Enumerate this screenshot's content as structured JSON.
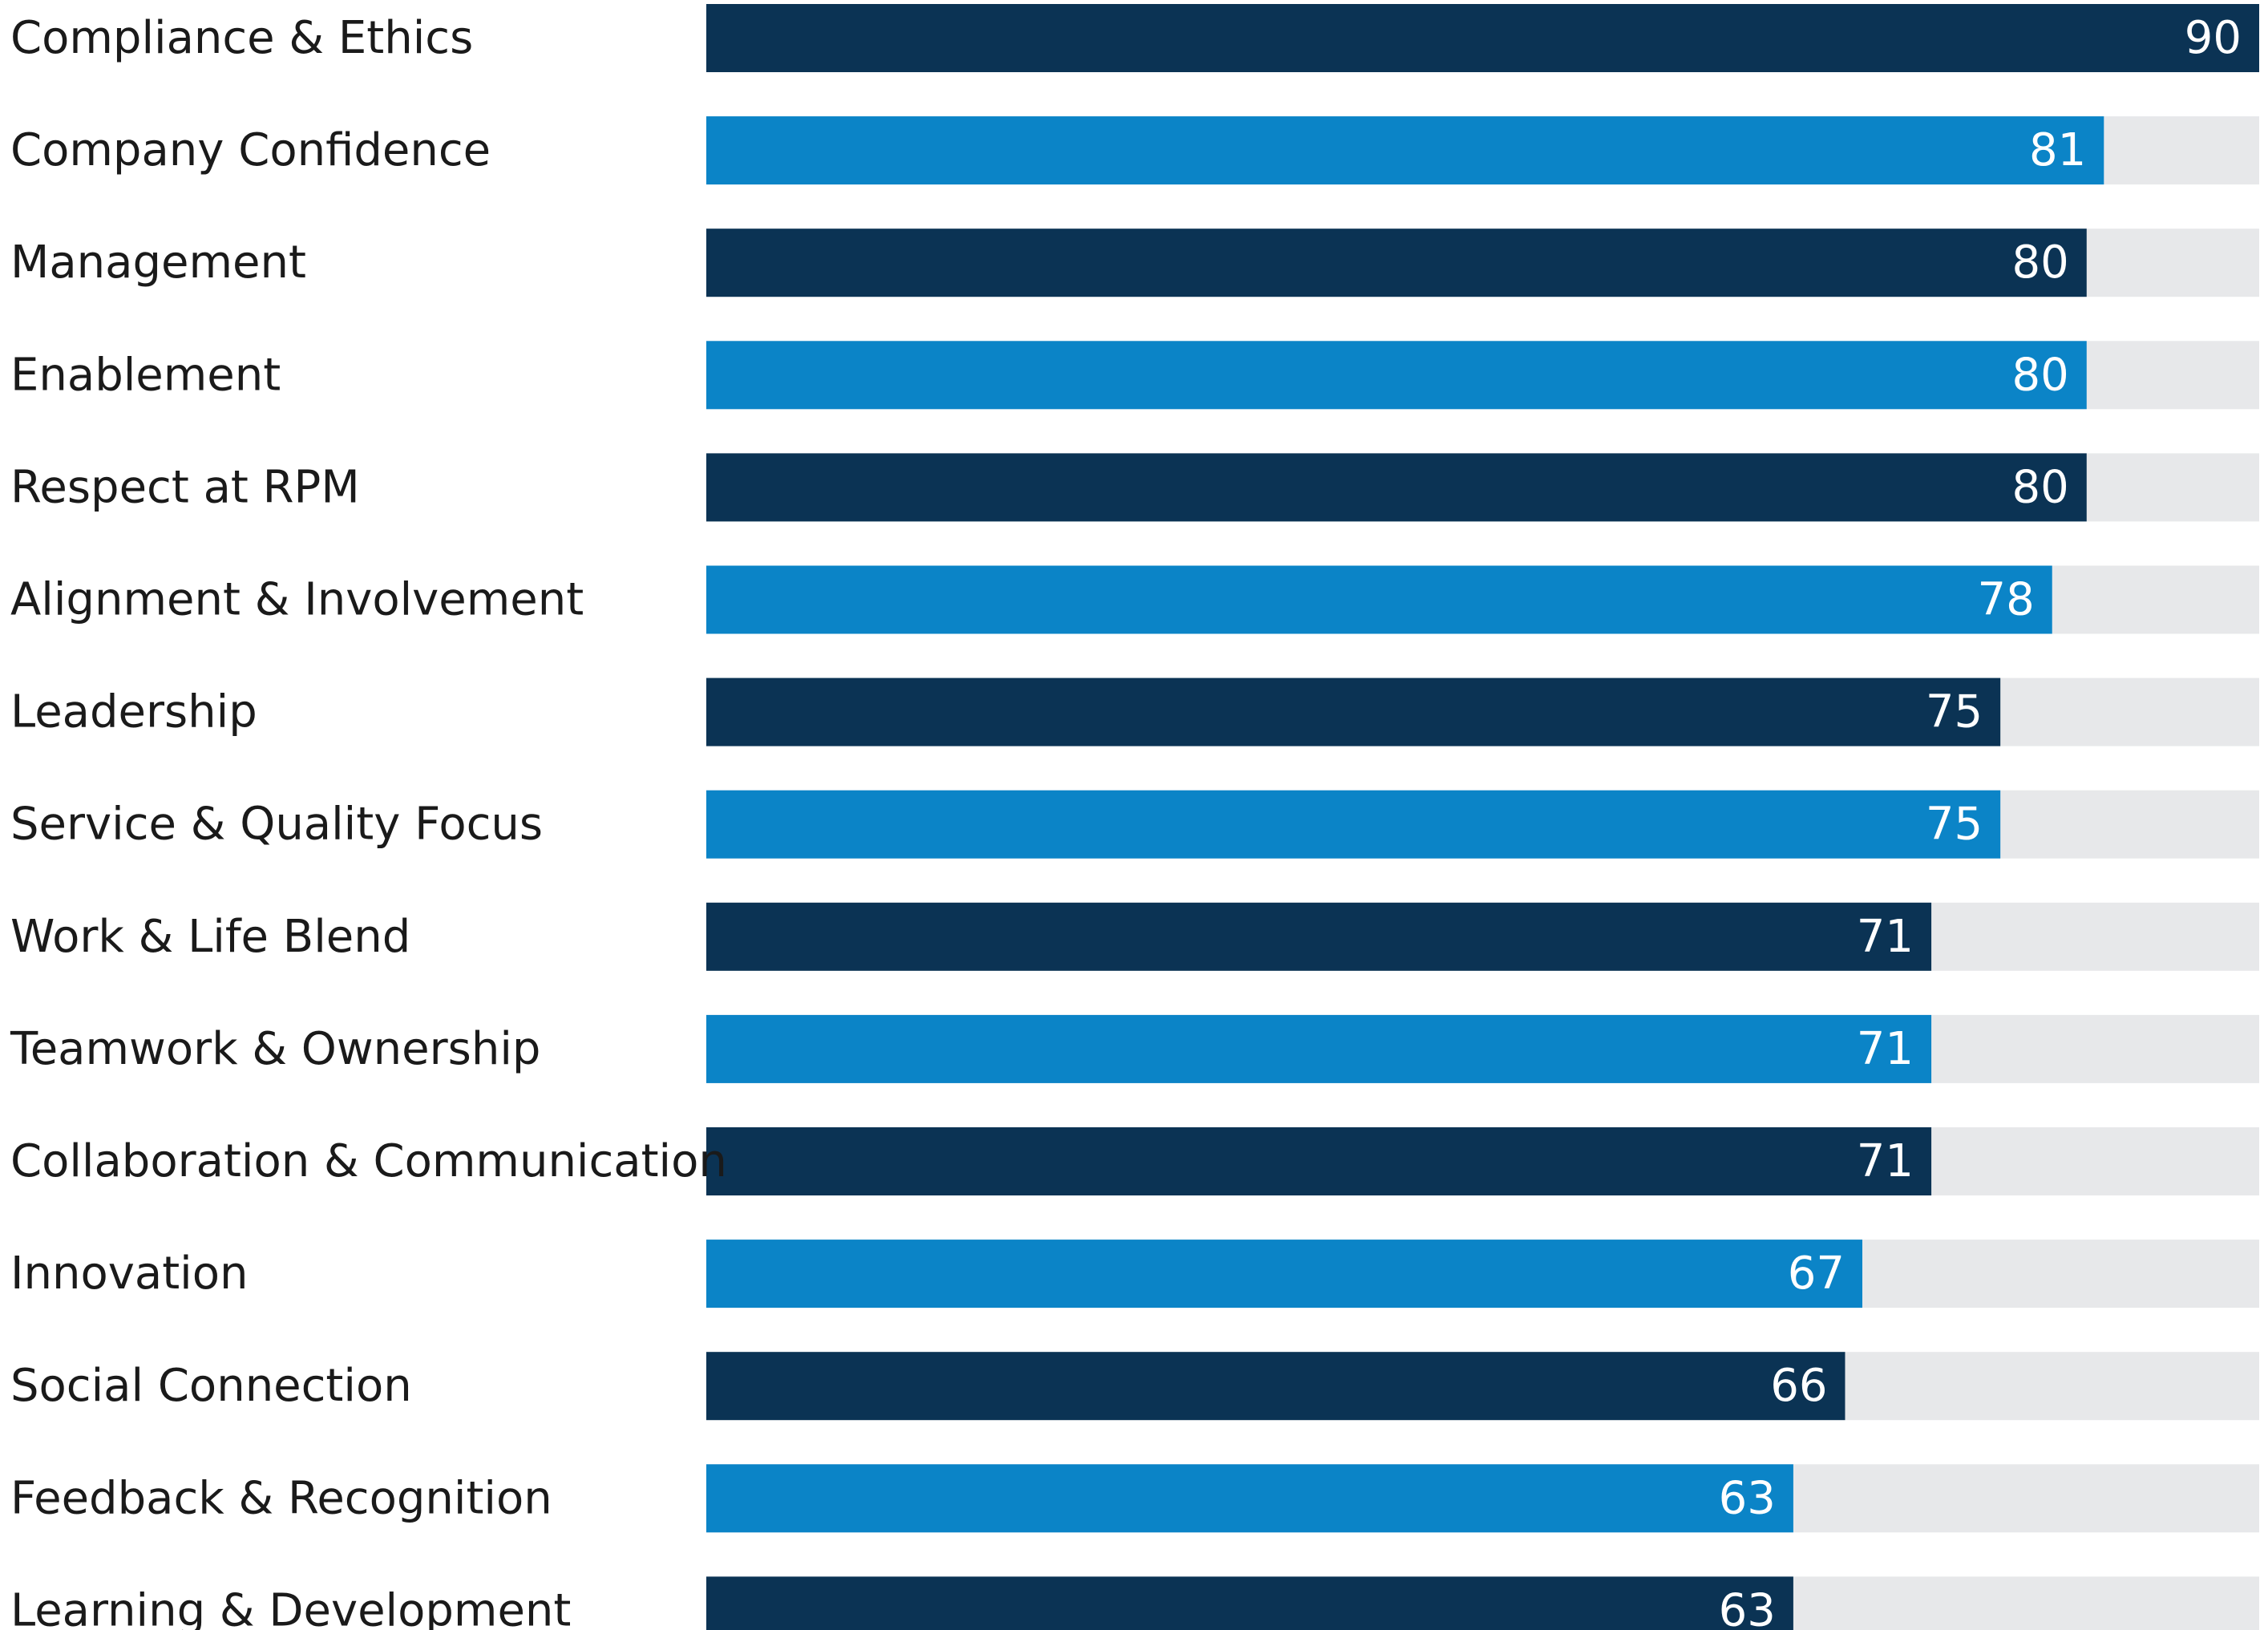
{
  "chart_data": {
    "type": "bar",
    "orientation": "horizontal",
    "title": "",
    "xlabel": "",
    "ylabel": "",
    "xlim": [
      0,
      90
    ],
    "grid": false,
    "categories": [
      "Compliance & Ethics",
      "Company Confidence",
      "Management",
      "Enablement",
      "Respect at RPM",
      "Alignment & Involvement",
      "Leadership",
      "Service & Quality Focus",
      "Work & Life Blend",
      "Teamwork & Ownership",
      "Collaboration & Communication",
      "Innovation",
      "Social Connection",
      "Feedback & Recognition",
      "Learning & Development"
    ],
    "values": [
      90,
      81,
      80,
      80,
      80,
      78,
      75,
      75,
      71,
      71,
      71,
      67,
      66,
      63,
      63
    ],
    "value_labels": [
      "90",
      "81",
      "80",
      "80",
      "80",
      "78",
      "75",
      "75",
      "71",
      "71",
      "71",
      "67",
      "66",
      "63",
      "63"
    ],
    "colors": {
      "dark": "#0b3354",
      "light": "#0b84c7",
      "track": "#e7e8ea",
      "label_text": "#1a1a1a",
      "value_text": "#ffffff"
    }
  }
}
